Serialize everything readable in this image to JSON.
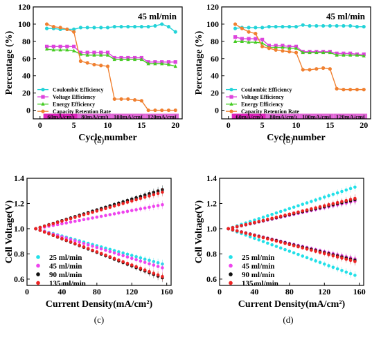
{
  "chart_data": [
    {
      "panel": "(a)",
      "type": "line",
      "annotation": "45 ml/min",
      "xlabel": "Cycle number",
      "ylabel": "Percentage (%)",
      "xlim": [
        -1,
        21
      ],
      "ylim": [
        -10,
        120
      ],
      "xticks": [
        0,
        5,
        10,
        15,
        20
      ],
      "yticks": [
        0,
        20,
        40,
        60,
        80,
        100,
        120
      ],
      "bands": [
        {
          "label": "60mA/cm²",
          "x0": 0.5,
          "x1": 5.5,
          "color": "#dd22bb"
        },
        {
          "label": "80mA/cm²",
          "x0": 5.5,
          "x1": 10.5,
          "color": "#e066d6"
        },
        {
          "label": "100mA/cm²",
          "x0": 10.5,
          "x1": 15.5,
          "color": "#e066d6"
        },
        {
          "label": "120mA/cm²",
          "x0": 15.5,
          "x1": 20.5,
          "color": "#e066d6"
        }
      ],
      "x": [
        1,
        2,
        3,
        4,
        5,
        6,
        7,
        8,
        9,
        10,
        11,
        12,
        13,
        14,
        15,
        16,
        17,
        18,
        19,
        20
      ],
      "legend_position": "lower-left",
      "series": [
        {
          "name": "Coulombic Efficiency",
          "color": "#22d3d8",
          "marker": "circle",
          "values": [
            95,
            95,
            94,
            94,
            94,
            96,
            96,
            96,
            96,
            96,
            97,
            97,
            97,
            97,
            97,
            97,
            98,
            100,
            97,
            91
          ]
        },
        {
          "name": "Voltage Efficiency",
          "color": "#dd44dd",
          "marker": "square",
          "values": [
            74,
            74,
            74,
            74,
            74,
            67,
            67,
            67,
            67,
            67,
            61,
            61,
            61,
            61,
            61,
            56,
            56,
            56,
            56,
            56
          ]
        },
        {
          "name": "Energy Efficiency",
          "color": "#44cc22",
          "marker": "triangle",
          "values": [
            71,
            70,
            70,
            70,
            69,
            65,
            64,
            64,
            64,
            64,
            59,
            59,
            59,
            59,
            59,
            54,
            54,
            54,
            53,
            51
          ]
        },
        {
          "name": "Capacity Retention Rate",
          "color": "#f08030",
          "marker": "circle",
          "values": [
            100,
            97,
            96,
            94,
            91,
            57,
            55,
            53,
            52,
            51,
            13,
            13,
            13,
            12,
            11,
            0,
            0,
            0,
            0,
            0
          ]
        }
      ]
    },
    {
      "panel": "(b)",
      "type": "line",
      "annotation": "45 ml/min",
      "xlabel": "Cycle number",
      "ylabel": "Percentage (%)",
      "xlim": [
        -1,
        21
      ],
      "ylim": [
        -10,
        120
      ],
      "xticks": [
        0,
        5,
        10,
        15,
        20
      ],
      "yticks": [
        0,
        20,
        40,
        60,
        80,
        100,
        120
      ],
      "bands": [
        {
          "label": "60mA/cm²",
          "x0": 0.5,
          "x1": 5.5,
          "color": "#dd22bb"
        },
        {
          "label": "80mA/cm²",
          "x0": 5.5,
          "x1": 10.5,
          "color": "#e066d6"
        },
        {
          "label": "100mA/cm²",
          "x0": 10.5,
          "x1": 15.5,
          "color": "#e066d6"
        },
        {
          "label": "120mA/cm²",
          "x0": 15.5,
          "x1": 20.5,
          "color": "#e066d6"
        }
      ],
      "x": [
        1,
        2,
        3,
        4,
        5,
        6,
        7,
        8,
        9,
        10,
        11,
        12,
        13,
        14,
        15,
        16,
        17,
        18,
        19,
        20
      ],
      "legend_position": "lower-left",
      "series": [
        {
          "name": "Coulombic Efficiency",
          "color": "#22d3d8",
          "marker": "circle",
          "values": [
            95,
            96,
            96,
            96,
            96,
            97,
            97,
            97,
            97,
            97,
            99,
            98,
            98,
            98,
            98,
            98,
            98,
            98,
            97,
            97
          ]
        },
        {
          "name": "Voltage Efficiency",
          "color": "#dd44dd",
          "marker": "square",
          "values": [
            85,
            83,
            83,
            83,
            82,
            75,
            75,
            75,
            74,
            74,
            68,
            68,
            68,
            68,
            68,
            66,
            66,
            66,
            65,
            65
          ]
        },
        {
          "name": "Energy Efficiency",
          "color": "#44cc22",
          "marker": "triangle",
          "values": [
            80,
            80,
            79,
            79,
            78,
            73,
            73,
            73,
            72,
            72,
            67,
            67,
            67,
            67,
            67,
            64,
            64,
            64,
            64,
            63
          ]
        },
        {
          "name": "Capacity Retention Rate",
          "color": "#f08030",
          "marker": "circle",
          "values": [
            100,
            95,
            91,
            89,
            74,
            72,
            70,
            69,
            68,
            67,
            47,
            47,
            48,
            49,
            48,
            25,
            24,
            24,
            24,
            24
          ]
        }
      ]
    },
    {
      "panel": "(c)",
      "type": "scatter",
      "xlabel": "Current Density(mA/cm²)",
      "ylabel": "Cell Voltage(V)",
      "xlim": [
        0,
        165
      ],
      "ylim": [
        0.55,
        1.4
      ],
      "xticks": [
        0,
        40,
        80,
        120,
        160
      ],
      "yticks": [
        0.6,
        0.8,
        1.0,
        1.2,
        1.4
      ],
      "x": [
        10,
        15,
        20,
        25,
        30,
        35,
        40,
        45,
        50,
        55,
        60,
        65,
        70,
        75,
        80,
        85,
        90,
        95,
        100,
        105,
        110,
        115,
        120,
        125,
        130,
        135,
        140,
        145,
        150,
        155
      ],
      "legend_position": "lower-left",
      "series": [
        {
          "name": "25   ml/min",
          "color": "#22e0e8",
          "charge_end": 1.3,
          "discharge_end": 0.72
        },
        {
          "name": "45   ml/min",
          "color": "#ee44ee",
          "charge_end": 1.19,
          "discharge_end": 0.69
        },
        {
          "name": "90   ml/min",
          "color": "#111111",
          "charge_end": 1.31,
          "discharge_end": 0.61
        },
        {
          "name": "135  ml/min",
          "color": "#ee2222",
          "charge_end": 1.29,
          "discharge_end": 0.62
        }
      ]
    },
    {
      "panel": "(d)",
      "type": "scatter",
      "xlabel": "Current Density(mA/cm²)",
      "ylabel": "Cell Voltage(V)",
      "xlim": [
        0,
        165
      ],
      "ylim": [
        0.55,
        1.4
      ],
      "xticks": [
        0,
        40,
        80,
        120,
        160
      ],
      "yticks": [
        0.6,
        0.8,
        1.0,
        1.2,
        1.4
      ],
      "x": [
        10,
        15,
        20,
        25,
        30,
        35,
        40,
        45,
        50,
        55,
        60,
        65,
        70,
        75,
        80,
        85,
        90,
        95,
        100,
        105,
        110,
        115,
        120,
        125,
        130,
        135,
        140,
        145,
        150,
        155
      ],
      "legend_position": "lower-left",
      "series": [
        {
          "name": "25   ml/min",
          "color": "#22e0e8",
          "charge_end": 1.33,
          "discharge_end": 0.63
        },
        {
          "name": "45   ml/min",
          "color": "#ee44ee",
          "charge_end": 1.22,
          "discharge_end": 0.76
        },
        {
          "name": "90   ml/min",
          "color": "#111111",
          "charge_end": 1.23,
          "discharge_end": 0.75
        },
        {
          "name": "135  ml/min",
          "color": "#ee2222",
          "charge_end": 1.24,
          "discharge_end": 0.74
        }
      ]
    }
  ]
}
